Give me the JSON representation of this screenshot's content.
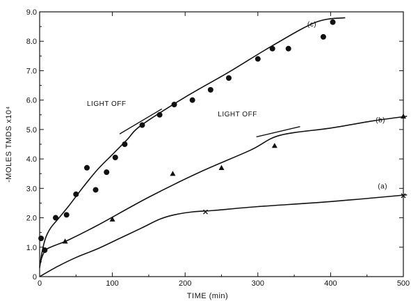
{
  "chart_data": {
    "type": "scatter",
    "title": "",
    "xlabel": "TIME (min)",
    "ylabel": "-MOLES TMDS x10⁴",
    "xlim": [
      0,
      500
    ],
    "ylim": [
      0,
      9
    ],
    "xticks": [
      0,
      100,
      200,
      300,
      400,
      500
    ],
    "xtick_labels": [
      "0",
      "100",
      "200",
      "300",
      "400",
      "500"
    ],
    "yticks": [
      0,
      1,
      2,
      3,
      4,
      5,
      6,
      7,
      8,
      9
    ],
    "ytick_labels": [
      "0",
      "1.0",
      "2.0",
      "3.0",
      "4.0",
      "5.0",
      "6.0",
      "7.0",
      "8.0",
      "9.0"
    ],
    "grid": false,
    "series": [
      {
        "name": "(c)",
        "marker": "circle",
        "points": [
          {
            "x": 2,
            "y": 1.3
          },
          {
            "x": 7,
            "y": 0.9
          },
          {
            "x": 22,
            "y": 2.0
          },
          {
            "x": 37,
            "y": 2.1
          },
          {
            "x": 50,
            "y": 2.8
          },
          {
            "x": 65,
            "y": 3.7
          },
          {
            "x": 77,
            "y": 2.95
          },
          {
            "x": 92,
            "y": 3.55
          },
          {
            "x": 104,
            "y": 4.05
          },
          {
            "x": 117,
            "y": 4.5
          },
          {
            "x": 141,
            "y": 5.15
          },
          {
            "x": 165,
            "y": 5.5
          },
          {
            "x": 185,
            "y": 5.85
          },
          {
            "x": 210,
            "y": 6.0
          },
          {
            "x": 235,
            "y": 6.35
          },
          {
            "x": 260,
            "y": 6.75
          },
          {
            "x": 300,
            "y": 7.4
          },
          {
            "x": 320,
            "y": 7.75
          },
          {
            "x": 342,
            "y": 7.75
          },
          {
            "x": 390,
            "y": 8.15
          },
          {
            "x": 403,
            "y": 8.65
          }
        ],
        "curve": [
          [
            0,
            0.3
          ],
          [
            3,
            0.8
          ],
          [
            8,
            1.3
          ],
          [
            15,
            1.65
          ],
          [
            25,
            1.95
          ],
          [
            40,
            2.4
          ],
          [
            60,
            3.05
          ],
          [
            80,
            3.65
          ],
          [
            100,
            4.15
          ],
          [
            120,
            4.65
          ],
          [
            140,
            5.15
          ],
          [
            200,
            6.1
          ],
          [
            260,
            6.95
          ],
          [
            320,
            7.85
          ],
          [
            380,
            8.65
          ],
          [
            420,
            8.8
          ]
        ]
      },
      {
        "name": "(b)",
        "marker": "triangle",
        "points": [
          {
            "x": 35,
            "y": 1.2
          },
          {
            "x": 100,
            "y": 1.95
          },
          {
            "x": 183,
            "y": 3.5
          },
          {
            "x": 250,
            "y": 3.7
          },
          {
            "x": 323,
            "y": 4.45
          },
          {
            "x": 500,
            "y": 5.45
          }
        ],
        "curve": [
          [
            0,
            0.35
          ],
          [
            3,
            0.65
          ],
          [
            8,
            0.9
          ],
          [
            15,
            1.0
          ],
          [
            25,
            1.1
          ],
          [
            40,
            1.25
          ],
          [
            80,
            1.75
          ],
          [
            150,
            2.7
          ],
          [
            220,
            3.55
          ],
          [
            290,
            4.3
          ],
          [
            330,
            4.8
          ],
          [
            400,
            5.05
          ],
          [
            460,
            5.3
          ],
          [
            505,
            5.45
          ]
        ]
      },
      {
        "name": "(a)",
        "marker": "cross",
        "points": [
          {
            "x": 228,
            "y": 2.2
          },
          {
            "x": 500,
            "y": 2.75
          }
        ],
        "curve": [
          [
            0,
            0
          ],
          [
            25,
            0.35
          ],
          [
            50,
            0.65
          ],
          [
            80,
            0.95
          ],
          [
            110,
            1.3
          ],
          [
            140,
            1.65
          ],
          [
            165,
            1.95
          ],
          [
            185,
            2.1
          ],
          [
            210,
            2.2
          ],
          [
            240,
            2.25
          ],
          [
            300,
            2.38
          ],
          [
            400,
            2.55
          ],
          [
            505,
            2.78
          ]
        ]
      }
    ],
    "annotations": [
      {
        "text": "(c)",
        "x": 368,
        "y": 8.5
      },
      {
        "text": "(b)",
        "x": 462,
        "y": 5.25
      },
      {
        "text": "(a)",
        "x": 465,
        "y": 3.0
      },
      {
        "text": "LIGHT OFF",
        "x": 65,
        "y": 5.8
      },
      {
        "text": "LIGHT OFF",
        "x": 245,
        "y": 5.45
      }
    ],
    "light_off_marks": [
      {
        "from": [
          110,
          4.85
        ],
        "to": [
          168,
          5.7
        ]
      },
      {
        "from": [
          298,
          4.75
        ],
        "to": [
          358,
          5.1
        ]
      }
    ]
  }
}
